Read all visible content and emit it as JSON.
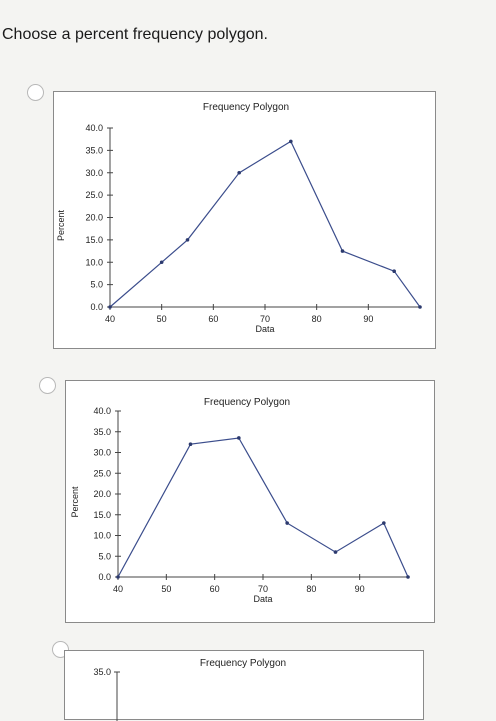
{
  "question": {
    "text": "Choose a percent frequency polygon."
  },
  "options": [
    {
      "chart_data": {
        "type": "line",
        "title": "Frequency Polygon",
        "xlabel": "Data",
        "ylabel": "Percent",
        "x_ticks": [
          "40",
          "50",
          "60",
          "70",
          "80",
          "90"
        ],
        "y_ticks": [
          "0.0",
          "5.0",
          "10.0",
          "15.0",
          "20.0",
          "25.0",
          "30.0",
          "35.0",
          "40.0"
        ],
        "xlim": [
          40,
          100
        ],
        "ylim": [
          0,
          40
        ],
        "x": [
          40,
          50,
          55,
          65,
          75,
          85,
          95,
          100
        ],
        "values": [
          0,
          10,
          15,
          30,
          37,
          12.5,
          8,
          0
        ],
        "grid": false
      }
    },
    {
      "chart_data": {
        "type": "line",
        "title": "Frequency Polygon",
        "xlabel": "Data",
        "ylabel": "Percent",
        "x_ticks": [
          "40",
          "50",
          "60",
          "70",
          "80",
          "90"
        ],
        "y_ticks": [
          "0.0",
          "5.0",
          "10.0",
          "15.0",
          "20.0",
          "25.0",
          "30.0",
          "35.0",
          "40.0"
        ],
        "xlim": [
          40,
          100
        ],
        "ylim": [
          0,
          40
        ],
        "x": [
          40,
          55,
          65,
          75,
          85,
          95,
          100
        ],
        "values": [
          0,
          32,
          33.5,
          13,
          6,
          13,
          0
        ],
        "grid": false
      }
    },
    {
      "chart_data": {
        "type": "line",
        "title": "Frequency Polygon",
        "y_ticks": [
          "35.0"
        ]
      }
    }
  ]
}
